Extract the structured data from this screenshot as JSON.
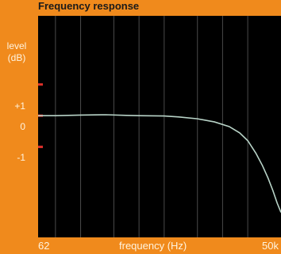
{
  "chart_data": {
    "type": "line",
    "title": "Frequency response",
    "ylabel": "level (dB)",
    "ylabel_line1": "level",
    "ylabel_line2": "(dB)",
    "xlabel": "frequency (Hz)",
    "x_scale": "log",
    "x_tick_labels": [
      "62",
      "50k"
    ],
    "y_tick_labels": [
      "+1",
      "0",
      "-1"
    ],
    "y_ticks": [
      1,
      0,
      -1
    ],
    "xlim": [
      62,
      50000
    ],
    "ylim": [
      -3.9,
      3.2
    ],
    "grid": true,
    "colors": {
      "background": "#f08a1c",
      "plot_background": "#000000",
      "grid": "#4a4a4a",
      "series": "#b9d4c8",
      "tick_marks": "#e0302a",
      "text": "#fff4e0"
    },
    "series": [
      {
        "x": [
          62,
          100,
          200,
          400,
          700,
          1000,
          2000,
          3000,
          5000,
          8000,
          12000,
          16000,
          20000,
          25000,
          30000,
          35000,
          40000,
          45000,
          50000
        ],
        "y": [
          0.0,
          0.0,
          0.02,
          0.03,
          0.01,
          0.0,
          -0.01,
          -0.04,
          -0.1,
          -0.2,
          -0.35,
          -0.55,
          -0.8,
          -1.2,
          -1.6,
          -2.0,
          -2.4,
          -2.8,
          -3.1
        ]
      }
    ]
  }
}
